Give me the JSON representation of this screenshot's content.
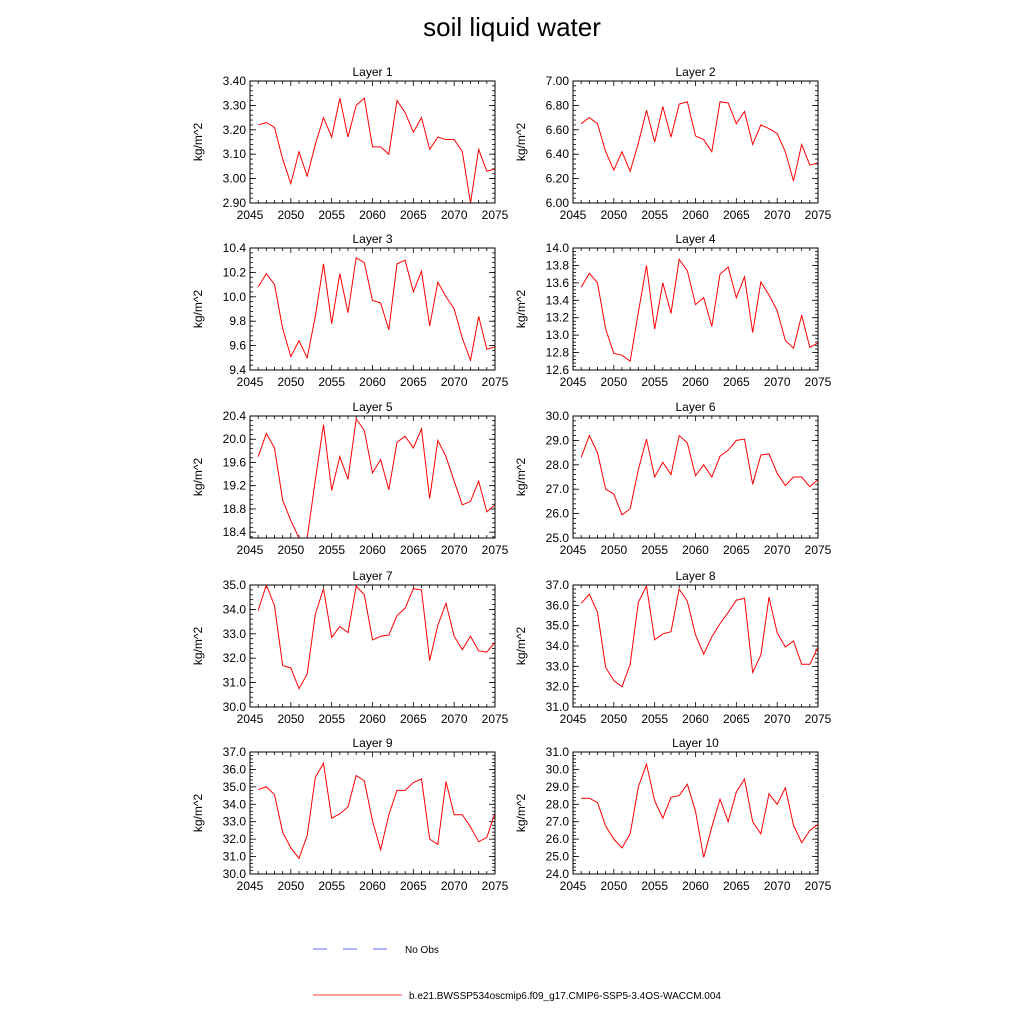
{
  "title": "soil liquid water",
  "chart_data": {
    "type": "line",
    "title": "soil liquid water",
    "ylabel": "kg/m^2",
    "x": [
      2046,
      2047,
      2048,
      2049,
      2050,
      2051,
      2052,
      2053,
      2054,
      2055,
      2056,
      2057,
      2058,
      2059,
      2060,
      2061,
      2062,
      2063,
      2064,
      2065,
      2066,
      2067,
      2068,
      2069,
      2070,
      2071,
      2072,
      2073,
      2074,
      2075
    ],
    "xlim": [
      2045,
      2075
    ],
    "xticks": [
      2045,
      2050,
      2055,
      2060,
      2065,
      2070,
      2075
    ],
    "panels": [
      {
        "title": "Layer 1",
        "ylim": [
          2.9,
          3.4
        ],
        "ytick_start": 2.9,
        "ytick_step": 0.1,
        "ytick_decimals": 2,
        "values": [
          3.22,
          3.23,
          3.21,
          3.08,
          2.98,
          3.11,
          3.01,
          3.14,
          3.25,
          3.17,
          3.33,
          3.17,
          3.3,
          3.33,
          3.13,
          3.13,
          3.1,
          3.32,
          3.27,
          3.19,
          3.25,
          3.12,
          3.17,
          3.16,
          3.16,
          3.11,
          2.9,
          3.12,
          3.03,
          3.04
        ]
      },
      {
        "title": "Layer 2",
        "ylim": [
          6.0,
          7.0
        ],
        "ytick_start": 6.0,
        "ytick_step": 0.2,
        "ytick_decimals": 2,
        "values": [
          6.65,
          6.7,
          6.65,
          6.42,
          6.27,
          6.42,
          6.26,
          6.49,
          6.76,
          6.5,
          6.79,
          6.54,
          6.81,
          6.83,
          6.55,
          6.52,
          6.42,
          6.83,
          6.82,
          6.65,
          6.75,
          6.48,
          6.64,
          6.61,
          6.57,
          6.42,
          6.18,
          6.48,
          6.31,
          6.33
        ]
      },
      {
        "title": "Layer 3",
        "ylim": [
          9.4,
          10.4
        ],
        "ytick_start": 9.4,
        "ytick_step": 0.2,
        "ytick_decimals": 1,
        "values": [
          10.08,
          10.19,
          10.1,
          9.74,
          9.51,
          9.64,
          9.5,
          9.84,
          10.27,
          9.78,
          10.19,
          9.87,
          10.32,
          10.28,
          9.97,
          9.95,
          9.73,
          10.27,
          10.3,
          10.04,
          10.21,
          9.76,
          10.12,
          10.0,
          9.9,
          9.66,
          9.48,
          9.84,
          9.57,
          9.59
        ]
      },
      {
        "title": "Layer 4",
        "ylim": [
          12.6,
          14.0
        ],
        "ytick_start": 12.6,
        "ytick_step": 0.2,
        "ytick_decimals": 1,
        "values": [
          13.55,
          13.71,
          13.6,
          13.07,
          12.79,
          12.77,
          12.7,
          13.26,
          13.8,
          13.07,
          13.6,
          13.25,
          13.87,
          13.74,
          13.35,
          13.43,
          13.1,
          13.7,
          13.78,
          13.43,
          13.67,
          13.03,
          13.61,
          13.46,
          13.28,
          12.94,
          12.85,
          13.23,
          12.86,
          12.91
        ]
      },
      {
        "title": "Layer 5",
        "ylim": [
          18.3,
          20.4
        ],
        "ytick_start": 18.4,
        "ytick_step": 0.4,
        "ytick_decimals": 1,
        "values": [
          19.7,
          20.1,
          19.85,
          18.95,
          18.6,
          18.3,
          18.3,
          19.3,
          20.25,
          19.12,
          19.7,
          19.31,
          20.35,
          20.15,
          19.42,
          19.65,
          19.13,
          19.95,
          20.05,
          19.85,
          20.18,
          18.98,
          19.98,
          19.7,
          19.28,
          18.87,
          18.93,
          19.28,
          18.75,
          18.87
        ]
      },
      {
        "title": "Layer 6",
        "ylim": [
          25.0,
          30.0
        ],
        "ytick_start": 25.0,
        "ytick_step": 1.0,
        "ytick_decimals": 1,
        "values": [
          28.3,
          29.2,
          28.5,
          27.0,
          26.8,
          25.95,
          26.2,
          27.8,
          29.05,
          27.5,
          28.1,
          27.6,
          29.2,
          28.9,
          27.55,
          28.0,
          27.5,
          28.35,
          28.6,
          29.0,
          29.05,
          27.2,
          28.4,
          28.45,
          27.65,
          27.15,
          27.5,
          27.5,
          27.1,
          27.4
        ]
      },
      {
        "title": "Layer 7",
        "ylim": [
          30.0,
          35.0
        ],
        "ytick_start": 30.0,
        "ytick_step": 1.0,
        "ytick_decimals": 1,
        "values": [
          33.95,
          35.0,
          34.15,
          31.7,
          31.6,
          30.75,
          31.35,
          33.8,
          34.85,
          32.85,
          33.3,
          33.05,
          34.95,
          34.6,
          32.75,
          32.9,
          32.95,
          33.75,
          34.05,
          34.85,
          34.8,
          31.9,
          33.35,
          34.25,
          32.9,
          32.35,
          32.9,
          32.3,
          32.25,
          32.65
        ]
      },
      {
        "title": "Layer 8",
        "ylim": [
          31.0,
          37.0
        ],
        "ytick_start": 31.0,
        "ytick_step": 1.0,
        "ytick_decimals": 1,
        "values": [
          36.1,
          36.55,
          35.65,
          32.95,
          32.3,
          32.0,
          33.1,
          36.15,
          36.95,
          34.3,
          34.6,
          34.7,
          36.8,
          36.2,
          34.55,
          33.6,
          34.45,
          35.1,
          35.65,
          36.25,
          36.35,
          32.7,
          33.55,
          36.4,
          34.65,
          33.95,
          34.25,
          33.1,
          33.1,
          33.95
        ]
      },
      {
        "title": "Layer 9",
        "ylim": [
          30.0,
          37.0
        ],
        "ytick_start": 30.0,
        "ytick_step": 1.0,
        "ytick_decimals": 1,
        "values": [
          34.85,
          35.0,
          34.55,
          32.4,
          31.5,
          30.9,
          32.2,
          35.55,
          36.35,
          33.2,
          33.45,
          33.85,
          35.65,
          35.35,
          33.05,
          31.4,
          33.4,
          34.8,
          34.8,
          35.25,
          35.45,
          32.0,
          31.7,
          35.3,
          33.4,
          33.4,
          32.7,
          31.85,
          32.1,
          33.5
        ]
      },
      {
        "title": "Layer 10",
        "ylim": [
          24.0,
          31.0
        ],
        "ytick_start": 24.0,
        "ytick_step": 1.0,
        "ytick_decimals": 1,
        "values": [
          28.35,
          28.35,
          28.1,
          26.75,
          26.0,
          25.5,
          26.3,
          29.0,
          30.3,
          28.2,
          27.2,
          28.4,
          28.5,
          29.15,
          27.6,
          24.95,
          26.7,
          28.3,
          27.0,
          28.7,
          29.45,
          27.0,
          26.3,
          28.6,
          28.0,
          28.95,
          26.8,
          25.8,
          26.5,
          26.85
        ]
      }
    ],
    "legend": [
      {
        "label": "No Obs",
        "style": "dashed",
        "color": "#2b3bff"
      },
      {
        "label": "b.e21.BWSSP534oscmip6.f09_g17.CMIP6-SSP5-3.4OS-WACCM.004",
        "style": "solid",
        "color": "#ff0000"
      }
    ]
  }
}
